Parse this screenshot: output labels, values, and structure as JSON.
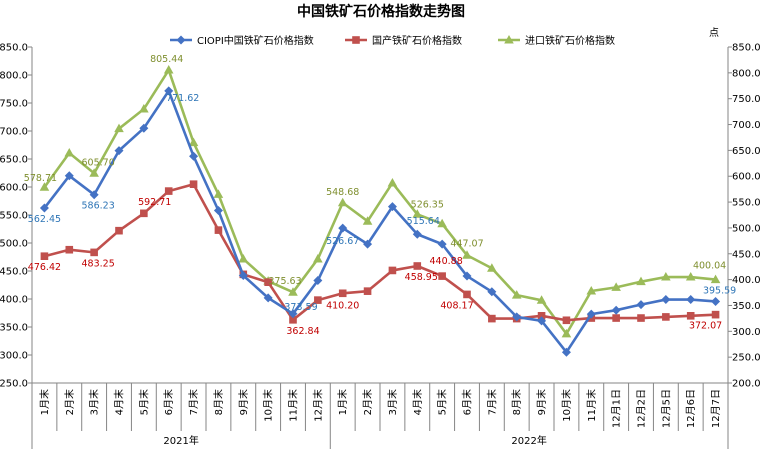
{
  "chart_data": {
    "type": "line",
    "title": "中国铁矿石价格指数走势图",
    "y2_unit_label": "点",
    "ylim": [
      250.0,
      850.0
    ],
    "y_ticks": [
      "250.0",
      "300.0",
      "350.0",
      "400.0",
      "450.0",
      "500.0",
      "550.0",
      "600.0",
      "650.0",
      "700.0",
      "750.0",
      "800.0",
      "850.0"
    ],
    "y2lim": [
      200.0,
      850.0
    ],
    "y2_ticks": [
      "200.0",
      "250.0",
      "300.0",
      "350.0",
      "400.0",
      "450.0",
      "500.0",
      "550.0",
      "600.0",
      "650.0",
      "700.0",
      "750.0",
      "800.0",
      "850.0"
    ],
    "categories": [
      "1月末",
      "2月末",
      "3月末",
      "4月末",
      "5月末",
      "6月末",
      "7月末",
      "8月末",
      "9月末",
      "10月末",
      "11月末",
      "12月末",
      "1月末",
      "2月末",
      "3月末",
      "4月末",
      "5月末",
      "6月末",
      "7月末",
      "8月末",
      "9月末",
      "10月末",
      "11月末",
      "12月1日",
      "12月2日",
      "12月5日",
      "12月6日",
      "12月7日"
    ],
    "groups": [
      {
        "label": "2021年",
        "start": 0,
        "end": 11
      },
      {
        "label": "2022年",
        "start": 12,
        "end": 27
      }
    ],
    "series": [
      {
        "name": "CIOPI中国铁矿石价格指数",
        "axis": "left",
        "color": "#4472C4",
        "marker": "diamond",
        "values": [
          562.45,
          620,
          586.23,
          665,
          705,
          771.62,
          655,
          558,
          442,
          402,
          373.59,
          433,
          526.67,
          498,
          565,
          515.64,
          498,
          441,
          413,
          368,
          361,
          305,
          373,
          380,
          390,
          399,
          399,
          395.59
        ]
      },
      {
        "name": "国产铁矿石价格指数",
        "axis": "left",
        "color": "#C0504D",
        "marker": "square",
        "values": [
          476.42,
          488,
          483.25,
          522,
          553,
          592.71,
          605,
          523,
          444,
          430,
          362.84,
          398,
          410.2,
          414,
          451,
          458.95,
          440.88,
          408.17,
          365,
          365,
          370,
          362,
          366,
          366,
          366,
          368,
          370,
          372.07
        ]
      },
      {
        "name": "进口铁矿石价格指数",
        "axis": "right",
        "color": "#9BBB59",
        "marker": "triangle",
        "values": [
          578.71,
          645,
          605.7,
          692,
          730,
          805.44,
          665,
          565,
          440,
          397,
          375.63,
          440,
          548.68,
          513,
          587,
          526.35,
          508,
          447.07,
          422,
          370,
          360,
          295,
          378,
          385,
          396,
          405,
          405,
          400.04
        ]
      }
    ],
    "data_labels": [
      {
        "series": 0,
        "index": 0,
        "text": "562.45"
      },
      {
        "series": 0,
        "index": 2,
        "text": "586.23"
      },
      {
        "series": 0,
        "index": 5,
        "text": "771.62"
      },
      {
        "series": 0,
        "index": 10,
        "text": "373.59"
      },
      {
        "series": 0,
        "index": 12,
        "text": "526.67"
      },
      {
        "series": 0,
        "index": 15,
        "text": "515.64"
      },
      {
        "series": 0,
        "index": 27,
        "text": "395.59"
      },
      {
        "series": 1,
        "index": 0,
        "text": "476.42"
      },
      {
        "series": 1,
        "index": 2,
        "text": "483.25"
      },
      {
        "series": 1,
        "index": 5,
        "text": "592.71"
      },
      {
        "series": 1,
        "index": 10,
        "text": "362.84"
      },
      {
        "series": 1,
        "index": 12,
        "text": "410.20"
      },
      {
        "series": 1,
        "index": 15,
        "text": "458.95"
      },
      {
        "series": 1,
        "index": 16,
        "text": "440.88"
      },
      {
        "series": 1,
        "index": 17,
        "text": "408.17"
      },
      {
        "series": 1,
        "index": 27,
        "text": "372.07"
      },
      {
        "series": 2,
        "index": 0,
        "text": "578.71"
      },
      {
        "series": 2,
        "index": 2,
        "text": "605.70"
      },
      {
        "series": 2,
        "index": 5,
        "text": "805.44"
      },
      {
        "series": 2,
        "index": 10,
        "text": "375.63"
      },
      {
        "series": 2,
        "index": 12,
        "text": "548.68"
      },
      {
        "series": 2,
        "index": 15,
        "text": "526.35"
      },
      {
        "series": 2,
        "index": 17,
        "text": "447.07"
      },
      {
        "series": 2,
        "index": 27,
        "text": "400.04"
      }
    ],
    "grid": false,
    "legend_position": "top"
  }
}
